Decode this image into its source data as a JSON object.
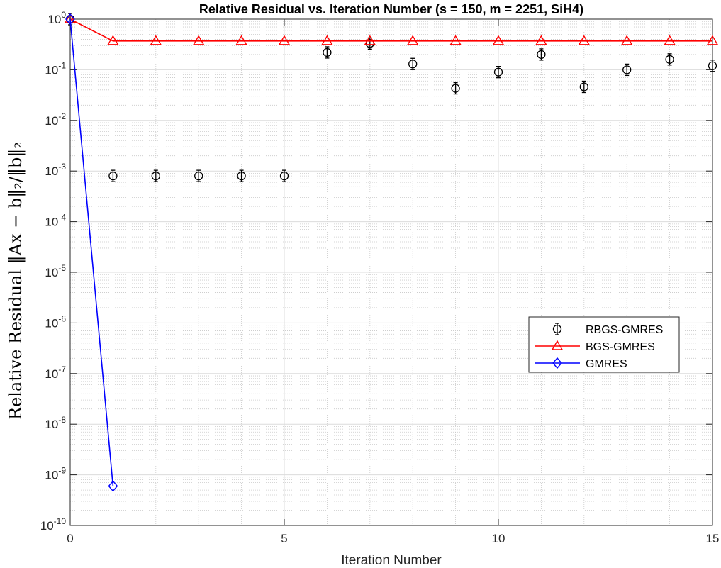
{
  "chart_data": {
    "type": "scatter",
    "title": "Relative Residual vs. Iteration Number (s = 150, m = 2251, SiH4)",
    "xlabel": "Iteration Number",
    "ylabel": "Relative Residual ‖Ax − b‖₂/‖b‖₂",
    "xlim": [
      0,
      15
    ],
    "ylim": [
      1e-10,
      1
    ],
    "yscale": "log",
    "x_ticks": [
      0,
      5,
      10,
      15
    ],
    "y_ticks": [
      {
        "value": 1e-10,
        "mantissa": "10",
        "exp": "-10"
      },
      {
        "value": 1e-09,
        "mantissa": "10",
        "exp": "-9"
      },
      {
        "value": 1e-08,
        "mantissa": "10",
        "exp": "-8"
      },
      {
        "value": 1e-07,
        "mantissa": "10",
        "exp": "-7"
      },
      {
        "value": 1e-06,
        "mantissa": "10",
        "exp": "-6"
      },
      {
        "value": 1e-05,
        "mantissa": "10",
        "exp": "-5"
      },
      {
        "value": 0.0001,
        "mantissa": "10",
        "exp": "-4"
      },
      {
        "value": 0.001,
        "mantissa": "10",
        "exp": "-3"
      },
      {
        "value": 0.01,
        "mantissa": "10",
        "exp": "-2"
      },
      {
        "value": 0.1,
        "mantissa": "10",
        "exp": "-1"
      },
      {
        "value": 1,
        "mantissa": "10",
        "exp": "0"
      }
    ],
    "grid": true,
    "minor_grid": true,
    "legend_position": "center-right",
    "series": [
      {
        "name": "RBGS-GMRES",
        "marker": "circle-errorbar",
        "line": false,
        "color": "#000000",
        "x": [
          0,
          1,
          2,
          3,
          4,
          5,
          6,
          7,
          8,
          9,
          10,
          11,
          12,
          13,
          14,
          15
        ],
        "y": [
          1,
          0.0008,
          0.0008,
          0.0008,
          0.0008,
          0.0008,
          0.22,
          0.33,
          0.13,
          0.043,
          0.09,
          0.2,
          0.046,
          0.1,
          0.16,
          0.12
        ]
      },
      {
        "name": "BGS-GMRES",
        "marker": "triangle",
        "line": true,
        "color": "#ff0000",
        "x": [
          0,
          1,
          2,
          3,
          4,
          5,
          6,
          7,
          8,
          9,
          10,
          11,
          12,
          13,
          14,
          15
        ],
        "y": [
          1,
          0.37,
          0.37,
          0.37,
          0.37,
          0.37,
          0.37,
          0.37,
          0.37,
          0.37,
          0.37,
          0.37,
          0.37,
          0.37,
          0.37,
          0.37
        ]
      },
      {
        "name": "GMRES",
        "marker": "diamond",
        "line": true,
        "color": "#0000ff",
        "x": [
          0,
          1
        ],
        "y": [
          1,
          6e-10
        ]
      }
    ]
  }
}
